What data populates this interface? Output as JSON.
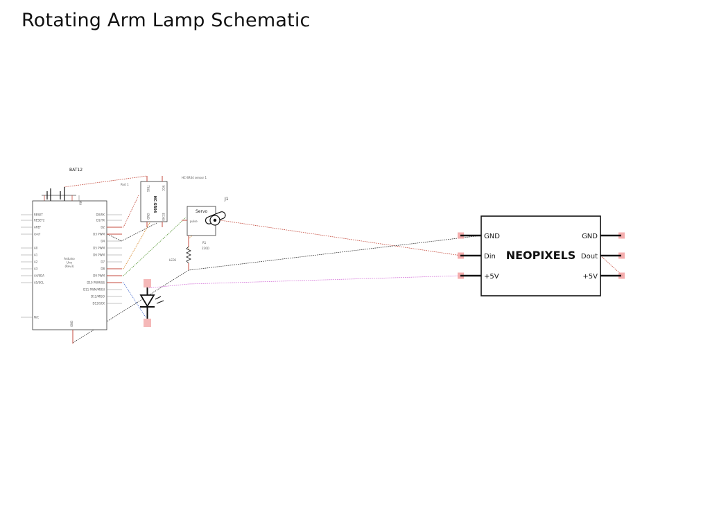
{
  "title": "Rotating Arm Lamp Schematic",
  "battery": {
    "label": "BAT12",
    "plus": "+"
  },
  "arduino": {
    "name_lines": [
      "Arduino",
      "Uno",
      "(Rev3)"
    ],
    "left_pins": [
      "RESET",
      "RESET2",
      "AREF",
      "ioref",
      "A0",
      "A1",
      "A2",
      "A3",
      "A4/SDA",
      "A5/SCL",
      "N/C"
    ],
    "right_pins": [
      "D0/RX",
      "D1/TX",
      "D2",
      "D3 PWM",
      "D4",
      "D5 PWM",
      "D6 PWM",
      "D7",
      "D8",
      "D9 PWM",
      "D10 PWM/SS",
      "D11 PWM/MOSI",
      "D12/MISO",
      "D13/SCK"
    ],
    "top_pin": "VIN",
    "bottom_pin": "GND"
  },
  "sensor": {
    "part_label": "Part 1",
    "name": "HC-SR04 sensor 1",
    "chip": "HC-SR04",
    "pins": [
      "VCC",
      "TRIG",
      "ECHO",
      "GND"
    ]
  },
  "servo": {
    "ref": "J1",
    "title": "Servo",
    "pin": "pulse"
  },
  "resistor": {
    "ref": "R1",
    "value": "220Ω"
  },
  "led": {
    "ref": "LED1"
  },
  "neopixels": {
    "name": "NEOPIXELS",
    "left_pins": [
      "GND",
      "Din",
      "+5V"
    ],
    "right_pins": [
      "GND",
      "Dout",
      "+5V"
    ]
  },
  "colors": {
    "wire_gnd": "#333333",
    "wire_red": "#c44a3c",
    "wire_orange": "#d98a2b",
    "wire_green": "#5a9a3a",
    "wire_pink": "#d472d8",
    "wire_blue": "#4a6fd0",
    "pad": "#f2a0a0"
  }
}
